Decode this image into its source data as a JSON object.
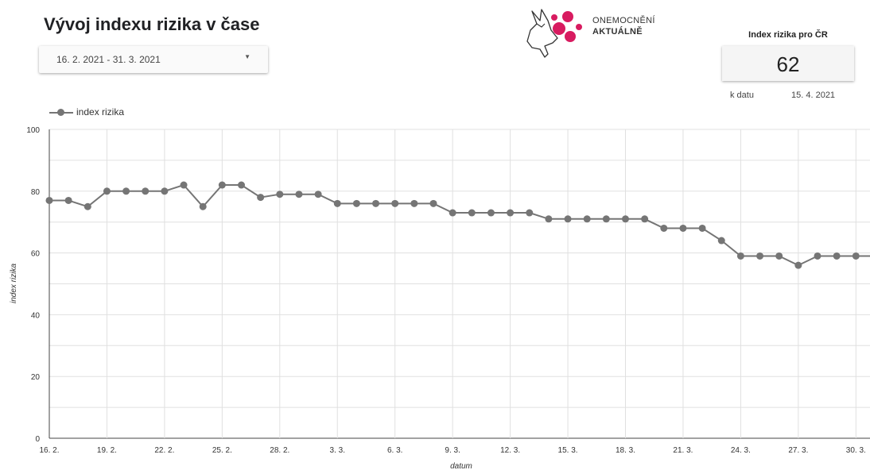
{
  "header": {
    "title": "Vývoj indexu rizika v čase"
  },
  "date_range": {
    "value": "16. 2. 2021 - 31. 3. 2021",
    "arrow_icon": "dropdown-arrow"
  },
  "logo": {
    "line1": "ONEMOCNĚNÍ",
    "line2": "AKTUÁLNĚ",
    "icon": "dog-with-virus-dots",
    "dot_color": "#d81b60"
  },
  "kpi": {
    "title": "Index rizika pro ČR",
    "value": "62",
    "date_label": "k datu",
    "date_value": "15. 4. 2021"
  },
  "chart_data": {
    "type": "line",
    "x": [
      "16. 2.",
      "17. 2.",
      "18. 2.",
      "19. 2.",
      "20. 2.",
      "21. 2.",
      "22. 2.",
      "23. 2.",
      "24. 2.",
      "25. 2.",
      "26. 2.",
      "27. 2.",
      "28. 2.",
      "1. 3.",
      "2. 3.",
      "3. 3.",
      "4. 3.",
      "5. 3.",
      "6. 3.",
      "7. 3.",
      "8. 3.",
      "9. 3.",
      "10. 3.",
      "11. 3.",
      "12. 3.",
      "13. 3.",
      "14. 3.",
      "15. 3.",
      "16. 3.",
      "17. 3.",
      "18. 3.",
      "19. 3.",
      "20. 3.",
      "21. 3.",
      "22. 3.",
      "23. 3.",
      "24. 3.",
      "25. 3.",
      "26. 3.",
      "27. 3.",
      "28. 3.",
      "29. 3.",
      "30. 3.",
      "31. 3."
    ],
    "series": [
      {
        "name": "index rizika",
        "values": [
          77,
          77,
          75,
          80,
          80,
          80,
          80,
          82,
          75,
          82,
          82,
          78,
          79,
          79,
          79,
          76,
          76,
          76,
          76,
          76,
          76,
          73,
          73,
          73,
          73,
          73,
          71,
          71,
          71,
          71,
          71,
          71,
          68,
          68,
          68,
          64,
          59,
          59,
          59,
          56,
          59,
          59,
          59,
          59
        ],
        "color": "#757575"
      }
    ],
    "x_tick_labels": [
      "16. 2.",
      "19. 2.",
      "22. 2.",
      "25. 2.",
      "28. 2.",
      "3. 3.",
      "6. 3.",
      "9. 3.",
      "12. 3.",
      "15. 3.",
      "18. 3.",
      "21. 3.",
      "24. 3.",
      "27. 3.",
      "30. 3."
    ],
    "y_ticks": [
      0,
      20,
      40,
      60,
      80,
      100
    ],
    "ylim": [
      0,
      100
    ],
    "xlabel": "datum",
    "ylabel": "index rizika",
    "legend": "top-left",
    "grid": true
  }
}
